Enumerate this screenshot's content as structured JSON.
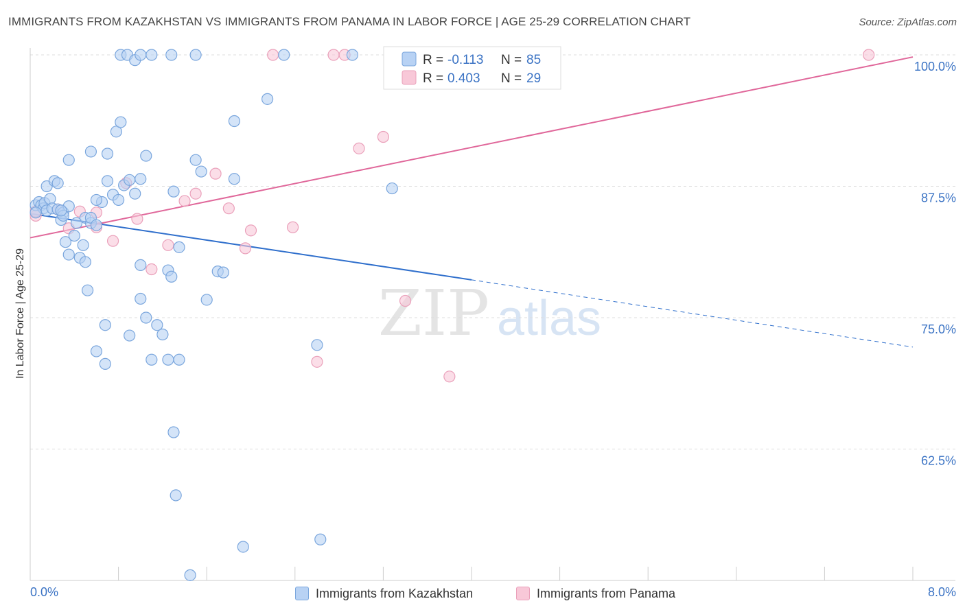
{
  "header": {
    "title": "IMMIGRANTS FROM KAZAKHSTAN VS IMMIGRANTS FROM PANAMA IN LABOR FORCE | AGE 25-29 CORRELATION CHART",
    "source": "Source: ZipAtlas.com"
  },
  "watermark": {
    "zip": "ZIP",
    "atlas": "atlas"
  },
  "legend_box": {
    "rows": [
      {
        "r_label": "R =",
        "r_value": "-0.113",
        "n_label": "N =",
        "n_value": "85"
      },
      {
        "r_label": "R =",
        "r_value": "0.403",
        "n_label": "N =",
        "n_value": "29"
      }
    ]
  },
  "legend_bottom": [
    {
      "label": "Immigrants from Kazakhstan"
    },
    {
      "label": "Immigrants from Panama"
    }
  ],
  "colors": {
    "blue_fill": "#b8d2f4",
    "blue_stroke": "#7aa6dd",
    "blue_line": "#2f6fcc",
    "pink_fill": "#f8c8d8",
    "pink_stroke": "#eaa0ba",
    "pink_line": "#e0679a",
    "tick_text": "#3b73c4",
    "grid": "#dddddd"
  },
  "chart_data": {
    "type": "scatter",
    "title": "IMMIGRANTS FROM KAZAKHSTAN VS IMMIGRANTS FROM PANAMA IN LABOR FORCE | AGE 25-29 CORRELATION CHART",
    "xlabel": "",
    "ylabel": "In Labor Force | Age 25-29",
    "xlim": [
      0,
      8
    ],
    "ylim": [
      50,
      100
    ],
    "x_tick_labels": [
      "0.0%",
      "8.0%"
    ],
    "y_ticks": [
      {
        "value": 100,
        "label": "100.0%"
      },
      {
        "value": 87.5,
        "label": "87.5%"
      },
      {
        "value": 75,
        "label": "75.0%"
      },
      {
        "value": 62.5,
        "label": "62.5%"
      }
    ],
    "grid": true,
    "series": [
      {
        "name": "Immigrants from Kazakhstan",
        "color": "blue",
        "r": "-0.113",
        "n": "85",
        "trend": {
          "x": [
            0.0,
            4.0
          ],
          "y": [
            84.9,
            78.6
          ],
          "dashed_to": {
            "x": 8.0,
            "y": 72.2
          }
        },
        "points": [
          [
            0.05,
            85.7
          ],
          [
            0.08,
            86.0
          ],
          [
            0.1,
            85.7
          ],
          [
            0.12,
            85.4
          ],
          [
            0.13,
            85.9
          ],
          [
            0.15,
            85.2
          ],
          [
            0.18,
            86.3
          ],
          [
            0.2,
            85.4
          ],
          [
            0.25,
            85.3
          ],
          [
            0.3,
            85.0
          ],
          [
            0.15,
            87.5
          ],
          [
            0.22,
            88.0
          ],
          [
            0.25,
            87.8
          ],
          [
            0.35,
            85.6
          ],
          [
            0.28,
            84.3
          ],
          [
            0.32,
            82.2
          ],
          [
            0.35,
            81.0
          ],
          [
            0.4,
            82.8
          ],
          [
            0.45,
            80.7
          ],
          [
            0.5,
            80.3
          ],
          [
            0.42,
            84.0
          ],
          [
            0.5,
            84.5
          ],
          [
            0.55,
            84.0
          ],
          [
            0.48,
            81.9
          ],
          [
            0.52,
            77.6
          ],
          [
            0.55,
            84.5
          ],
          [
            0.6,
            83.8
          ],
          [
            0.65,
            86.0
          ],
          [
            0.7,
            88.0
          ],
          [
            0.75,
            86.7
          ],
          [
            0.8,
            86.2
          ],
          [
            0.85,
            87.6
          ],
          [
            0.9,
            88.1
          ],
          [
            0.95,
            86.8
          ],
          [
            1.0,
            88.2
          ],
          [
            0.35,
            90.0
          ],
          [
            0.55,
            90.8
          ],
          [
            0.7,
            90.6
          ],
          [
            0.78,
            92.7
          ],
          [
            0.82,
            93.6
          ],
          [
            1.05,
            90.4
          ],
          [
            0.82,
            100.0
          ],
          [
            0.88,
            100.0
          ],
          [
            0.95,
            99.5
          ],
          [
            1.0,
            100.0
          ],
          [
            1.1,
            100.0
          ],
          [
            1.28,
            100.0
          ],
          [
            1.5,
            100.0
          ],
          [
            1.0,
            76.8
          ],
          [
            1.05,
            75.0
          ],
          [
            1.15,
            74.3
          ],
          [
            1.25,
            79.5
          ],
          [
            1.28,
            78.9
          ],
          [
            1.2,
            73.4
          ],
          [
            1.35,
            71.0
          ],
          [
            1.25,
            71.0
          ],
          [
            1.1,
            71.0
          ],
          [
            0.9,
            73.3
          ],
          [
            0.68,
            74.3
          ],
          [
            0.6,
            71.8
          ],
          [
            0.68,
            70.6
          ],
          [
            1.0,
            80.0
          ],
          [
            1.3,
            87.0
          ],
          [
            1.35,
            81.7
          ],
          [
            1.5,
            90.0
          ],
          [
            1.55,
            88.9
          ],
          [
            1.7,
            79.4
          ],
          [
            1.75,
            79.3
          ],
          [
            1.6,
            76.7
          ],
          [
            1.85,
            93.7
          ],
          [
            1.85,
            88.2
          ],
          [
            2.15,
            95.8
          ],
          [
            2.3,
            100.0
          ],
          [
            2.92,
            100.0
          ],
          [
            2.6,
            72.4
          ],
          [
            3.28,
            87.3
          ],
          [
            1.3,
            64.1
          ],
          [
            1.32,
            58.1
          ],
          [
            1.45,
            50.5
          ],
          [
            1.93,
            53.2
          ],
          [
            2.63,
            53.9
          ],
          [
            0.6,
            86.2
          ],
          [
            0.3,
            84.7
          ],
          [
            0.28,
            85.2
          ],
          [
            0.05,
            85.0
          ]
        ]
      },
      {
        "name": "Immigrants from Panama",
        "color": "pink",
        "r": "0.403",
        "n": "29",
        "trend": {
          "x": [
            0.0,
            8.0
          ],
          "y": [
            82.6,
            99.8
          ]
        },
        "points": [
          [
            0.05,
            84.7
          ],
          [
            0.35,
            83.5
          ],
          [
            0.45,
            85.1
          ],
          [
            0.6,
            85.0
          ],
          [
            0.6,
            83.6
          ],
          [
            0.75,
            82.3
          ],
          [
            0.87,
            87.8
          ],
          [
            0.97,
            84.4
          ],
          [
            1.1,
            79.6
          ],
          [
            1.25,
            81.9
          ],
          [
            1.4,
            86.1
          ],
          [
            1.5,
            86.8
          ],
          [
            1.68,
            88.7
          ],
          [
            1.8,
            85.4
          ],
          [
            1.95,
            81.6
          ],
          [
            2.0,
            83.3
          ],
          [
            2.38,
            83.6
          ],
          [
            2.2,
            100.0
          ],
          [
            2.75,
            100.0
          ],
          [
            2.85,
            100.0
          ],
          [
            2.98,
            91.1
          ],
          [
            3.2,
            92.2
          ],
          [
            3.4,
            76.6
          ],
          [
            2.6,
            70.8
          ],
          [
            3.8,
            69.4
          ],
          [
            4.2,
            100.0
          ],
          [
            7.6,
            100.0
          ],
          [
            0.25,
            85.3
          ],
          [
            0.05,
            85.1
          ]
        ]
      }
    ]
  }
}
